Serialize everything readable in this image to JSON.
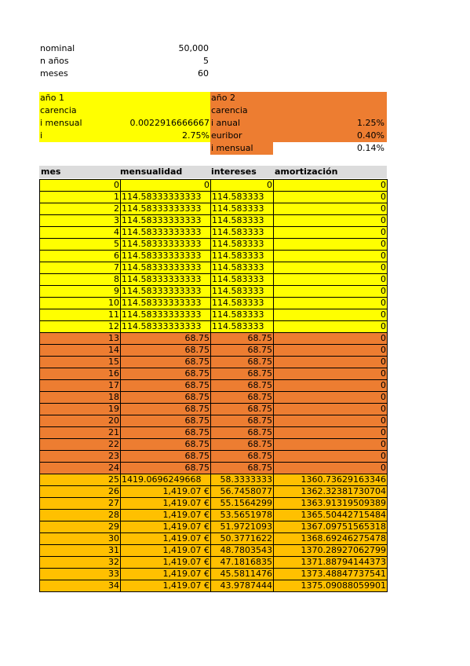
{
  "summary": {
    "nominal_label": "nominal",
    "nominal_value": "50,000",
    "years_label": "n años",
    "years_value": "5",
    "months_label": "meses",
    "months_value": "60"
  },
  "year1": {
    "title": "año 1",
    "grace": "carencia",
    "monthly_label": "i mensual",
    "monthly_value": "0.0022916666667",
    "i_label": "i",
    "i_value": "2.75%"
  },
  "year2": {
    "title": "año 2",
    "grace": "carencia",
    "annual_label": "i anual",
    "annual_value": "1.25%",
    "euribor_label": "euribor",
    "euribor_value": "0.40%",
    "monthly_label": "i mensual",
    "monthly_value": "0.14%"
  },
  "table": {
    "headers": [
      "mes",
      "mensualidad",
      "intereses",
      "amortización"
    ],
    "colors": {
      "year1": "#ffff00",
      "year2": "#ed7d31",
      "repay": "#ffc000"
    },
    "rows": [
      {
        "mes": "0",
        "mensualidad": "0",
        "intereses": "0",
        "amortizacion": "0",
        "band": "year1"
      },
      {
        "mes": "1",
        "mensualidad": "114.58333333333",
        "intereses": "114.583333",
        "amortizacion": "0",
        "band": "year1"
      },
      {
        "mes": "2",
        "mensualidad": "114.58333333333",
        "intereses": "114.583333",
        "amortizacion": "0",
        "band": "year1"
      },
      {
        "mes": "3",
        "mensualidad": "114.58333333333",
        "intereses": "114.583333",
        "amortizacion": "0",
        "band": "year1"
      },
      {
        "mes": "4",
        "mensualidad": "114.58333333333",
        "intereses": "114.583333",
        "amortizacion": "0",
        "band": "year1"
      },
      {
        "mes": "5",
        "mensualidad": "114.58333333333",
        "intereses": "114.583333",
        "amortizacion": "0",
        "band": "year1"
      },
      {
        "mes": "6",
        "mensualidad": "114.58333333333",
        "intereses": "114.583333",
        "amortizacion": "0",
        "band": "year1"
      },
      {
        "mes": "7",
        "mensualidad": "114.58333333333",
        "intereses": "114.583333",
        "amortizacion": "0",
        "band": "year1"
      },
      {
        "mes": "8",
        "mensualidad": "114.58333333333",
        "intereses": "114.583333",
        "amortizacion": "0",
        "band": "year1"
      },
      {
        "mes": "9",
        "mensualidad": "114.58333333333",
        "intereses": "114.583333",
        "amortizacion": "0",
        "band": "year1"
      },
      {
        "mes": "10",
        "mensualidad": "114.58333333333",
        "intereses": "114.583333",
        "amortizacion": "0",
        "band": "year1"
      },
      {
        "mes": "11",
        "mensualidad": "114.58333333333",
        "intereses": "114.583333",
        "amortizacion": "0",
        "band": "year1"
      },
      {
        "mes": "12",
        "mensualidad": "114.58333333333",
        "intereses": "114.583333",
        "amortizacion": "0",
        "band": "year1"
      },
      {
        "mes": "13",
        "mensualidad": "68.75",
        "intereses": "68.75",
        "amortizacion": "0",
        "band": "year2"
      },
      {
        "mes": "14",
        "mensualidad": "68.75",
        "intereses": "68.75",
        "amortizacion": "0",
        "band": "year2"
      },
      {
        "mes": "15",
        "mensualidad": "68.75",
        "intereses": "68.75",
        "amortizacion": "0",
        "band": "year2"
      },
      {
        "mes": "16",
        "mensualidad": "68.75",
        "intereses": "68.75",
        "amortizacion": "0",
        "band": "year2"
      },
      {
        "mes": "17",
        "mensualidad": "68.75",
        "intereses": "68.75",
        "amortizacion": "0",
        "band": "year2"
      },
      {
        "mes": "18",
        "mensualidad": "68.75",
        "intereses": "68.75",
        "amortizacion": "0",
        "band": "year2"
      },
      {
        "mes": "19",
        "mensualidad": "68.75",
        "intereses": "68.75",
        "amortizacion": "0",
        "band": "year2"
      },
      {
        "mes": "20",
        "mensualidad": "68.75",
        "intereses": "68.75",
        "amortizacion": "0",
        "band": "year2"
      },
      {
        "mes": "21",
        "mensualidad": "68.75",
        "intereses": "68.75",
        "amortizacion": "0",
        "band": "year2"
      },
      {
        "mes": "22",
        "mensualidad": "68.75",
        "intereses": "68.75",
        "amortizacion": "0",
        "band": "year2"
      },
      {
        "mes": "23",
        "mensualidad": "68.75",
        "intereses": "68.75",
        "amortizacion": "0",
        "band": "year2"
      },
      {
        "mes": "24",
        "mensualidad": "68.75",
        "intereses": "68.75",
        "amortizacion": "0",
        "band": "year2"
      },
      {
        "mes": "25",
        "mensualidad": "1419.0696249668",
        "intereses": "58.3333333",
        "amortizacion": "1360.73629163346",
        "band": "repay"
      },
      {
        "mes": "26",
        "mensualidad": "1,419.07 €",
        "intereses": "56.7458077",
        "amortizacion": "1362.32381730704",
        "band": "repay"
      },
      {
        "mes": "27",
        "mensualidad": "1,419.07 €",
        "intereses": "55.1564299",
        "amortizacion": "1363.91319509389",
        "band": "repay"
      },
      {
        "mes": "28",
        "mensualidad": "1,419.07 €",
        "intereses": "53.5651978",
        "amortizacion": "1365.50442715484",
        "band": "repay"
      },
      {
        "mes": "29",
        "mensualidad": "1,419.07 €",
        "intereses": "51.9721093",
        "amortizacion": "1367.09751565318",
        "band": "repay"
      },
      {
        "mes": "30",
        "mensualidad": "1,419.07 €",
        "intereses": "50.3771622",
        "amortizacion": "1368.69246275478",
        "band": "repay"
      },
      {
        "mes": "31",
        "mensualidad": "1,419.07 €",
        "intereses": "48.7803543",
        "amortizacion": "1370.28927062799",
        "band": "repay"
      },
      {
        "mes": "32",
        "mensualidad": "1,419.07 €",
        "intereses": "47.1816835",
        "amortizacion": "1371.88794144373",
        "band": "repay"
      },
      {
        "mes": "33",
        "mensualidad": "1,419.07 €",
        "intereses": "45.5811476",
        "amortizacion": "1373.48847737541",
        "band": "repay"
      },
      {
        "mes": "34",
        "mensualidad": "1,419.07 €",
        "intereses": "43.9787444",
        "amortizacion": "1375.09088059901",
        "band": "repay"
      }
    ]
  }
}
